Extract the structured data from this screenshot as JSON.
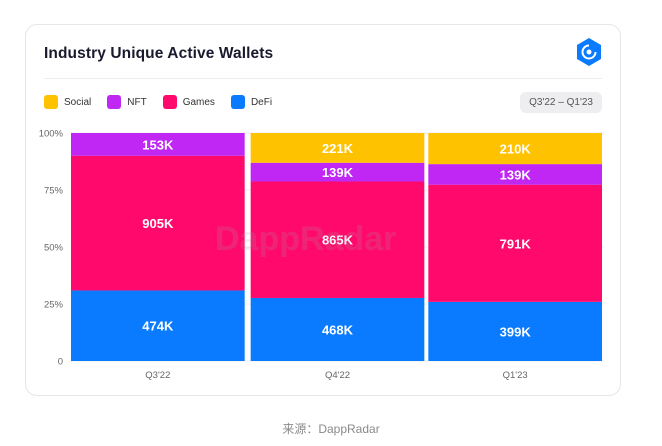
{
  "card": {
    "title": "Industry Unique Active Wallets",
    "range_badge": "Q3'22 – Q1'23",
    "logo_icon": "dappradar-logo-icon"
  },
  "legend": [
    {
      "name": "Social",
      "color": "#FFC200"
    },
    {
      "name": "NFT",
      "color": "#C026F4"
    },
    {
      "name": "Games",
      "color": "#FF0A6C"
    },
    {
      "name": "DeFi",
      "color": "#0A7BFF"
    }
  ],
  "watermark": "DappRadar",
  "caption": "来源：DappRadar",
  "chart_data": {
    "type": "bar",
    "stacked": true,
    "normalized": true,
    "categories": [
      "Q3'22",
      "Q4'22",
      "Q1'23"
    ],
    "series": [
      {
        "name": "DeFi",
        "color": "#0A7BFF",
        "values": [
          474,
          468,
          399
        ],
        "labels": [
          "474K",
          "468K",
          "399K"
        ]
      },
      {
        "name": "Games",
        "color": "#FF0A6C",
        "values": [
          905,
          865,
          791
        ],
        "labels": [
          "905K",
          "865K",
          "791K"
        ]
      },
      {
        "name": "NFT",
        "color": "#C026F4",
        "values": [
          153,
          139,
          139
        ],
        "labels": [
          "153K",
          "139K",
          "139K"
        ]
      },
      {
        "name": "Social",
        "color": "#FFC200",
        "values": [
          0,
          221,
          210
        ],
        "labels": [
          "",
          "221K",
          "210K"
        ]
      }
    ],
    "yticks": [
      "0",
      "25%",
      "50%",
      "75%",
      "100%"
    ],
    "ylim": [
      0,
      100
    ],
    "grid": true,
    "legend_position": "top-left"
  }
}
